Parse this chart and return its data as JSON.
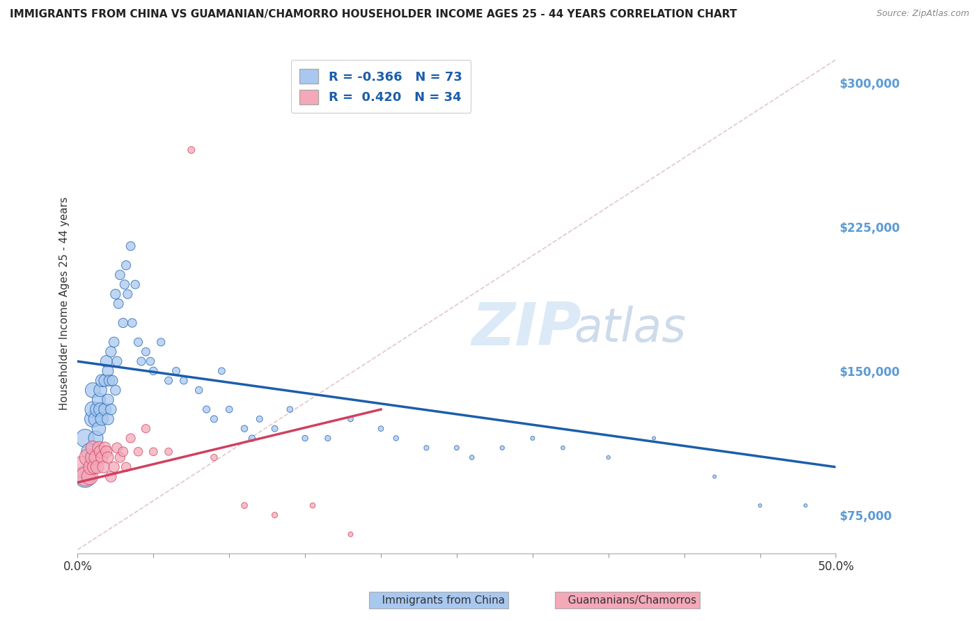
{
  "title": "IMMIGRANTS FROM CHINA VS GUAMANIAN/CHAMORRO HOUSEHOLDER INCOME AGES 25 - 44 YEARS CORRELATION CHART",
  "source": "Source: ZipAtlas.com",
  "ylabel": "Householder Income Ages 25 - 44 years",
  "xmin": 0.0,
  "xmax": 0.5,
  "ymin": 55000,
  "ymax": 315000,
  "yticks": [
    75000,
    150000,
    225000,
    300000
  ],
  "ytick_labels": [
    "$75,000",
    "$150,000",
    "$225,000",
    "$300,000"
  ],
  "legend_r1": "R = -0.366",
  "legend_n1": "N = 73",
  "legend_r2": "R =  0.420",
  "legend_n2": "N = 34",
  "color_blue": "#A8C8F0",
  "color_pink": "#F4A8B8",
  "color_blue_line": "#1B5EAB",
  "color_pink_line": "#D04060",
  "color_diag": "#E0C8C8",
  "china_x": [
    0.005,
    0.005,
    0.008,
    0.01,
    0.01,
    0.01,
    0.012,
    0.012,
    0.013,
    0.014,
    0.014,
    0.015,
    0.015,
    0.016,
    0.016,
    0.018,
    0.018,
    0.019,
    0.02,
    0.02,
    0.02,
    0.021,
    0.022,
    0.022,
    0.023,
    0.024,
    0.025,
    0.025,
    0.026,
    0.027,
    0.028,
    0.03,
    0.031,
    0.032,
    0.033,
    0.035,
    0.036,
    0.038,
    0.04,
    0.042,
    0.045,
    0.048,
    0.05,
    0.055,
    0.06,
    0.065,
    0.07,
    0.08,
    0.085,
    0.09,
    0.095,
    0.1,
    0.11,
    0.115,
    0.12,
    0.13,
    0.14,
    0.15,
    0.165,
    0.18,
    0.2,
    0.21,
    0.23,
    0.25,
    0.26,
    0.28,
    0.3,
    0.32,
    0.35,
    0.38,
    0.42,
    0.45,
    0.48
  ],
  "china_y": [
    95000,
    115000,
    108000,
    125000,
    130000,
    140000,
    115000,
    125000,
    130000,
    120000,
    135000,
    130000,
    140000,
    125000,
    145000,
    130000,
    145000,
    155000,
    125000,
    135000,
    150000,
    145000,
    130000,
    160000,
    145000,
    165000,
    140000,
    190000,
    155000,
    185000,
    200000,
    175000,
    195000,
    205000,
    190000,
    215000,
    175000,
    195000,
    165000,
    155000,
    160000,
    155000,
    150000,
    165000,
    145000,
    150000,
    145000,
    140000,
    130000,
    125000,
    150000,
    130000,
    120000,
    115000,
    125000,
    120000,
    130000,
    115000,
    115000,
    125000,
    120000,
    115000,
    110000,
    110000,
    105000,
    110000,
    115000,
    110000,
    105000,
    115000,
    95000,
    80000,
    80000
  ],
  "china_sizes": [
    500,
    350,
    300,
    280,
    260,
    240,
    230,
    220,
    210,
    200,
    190,
    185,
    180,
    175,
    165,
    160,
    155,
    150,
    145,
    140,
    135,
    130,
    125,
    120,
    115,
    110,
    108,
    105,
    102,
    100,
    98,
    95,
    92,
    90,
    88,
    85,
    82,
    80,
    78,
    75,
    72,
    70,
    68,
    65,
    62,
    60,
    58,
    56,
    54,
    52,
    50,
    48,
    46,
    44,
    42,
    40,
    38,
    36,
    34,
    32,
    30,
    28,
    26,
    24,
    22,
    20,
    18,
    16,
    14,
    12,
    12,
    12,
    12
  ],
  "guam_x": [
    0.003,
    0.005,
    0.007,
    0.008,
    0.009,
    0.01,
    0.01,
    0.011,
    0.012,
    0.013,
    0.014,
    0.015,
    0.016,
    0.017,
    0.018,
    0.019,
    0.02,
    0.022,
    0.024,
    0.026,
    0.028,
    0.03,
    0.032,
    0.035,
    0.04,
    0.045,
    0.05,
    0.06,
    0.075,
    0.09,
    0.11,
    0.13,
    0.155,
    0.18
  ],
  "guam_y": [
    100000,
    95000,
    105000,
    95000,
    100000,
    105000,
    110000,
    100000,
    105000,
    100000,
    110000,
    108000,
    105000,
    100000,
    110000,
    108000,
    105000,
    95000,
    100000,
    110000,
    105000,
    108000,
    100000,
    115000,
    108000,
    120000,
    108000,
    108000,
    265000,
    105000,
    80000,
    75000,
    80000,
    65000
  ],
  "guam_sizes": [
    500,
    380,
    320,
    280,
    250,
    230,
    210,
    200,
    190,
    180,
    170,
    160,
    155,
    150,
    145,
    140,
    135,
    125,
    118,
    112,
    106,
    100,
    95,
    90,
    82,
    76,
    70,
    60,
    52,
    46,
    40,
    35,
    30,
    26
  ]
}
